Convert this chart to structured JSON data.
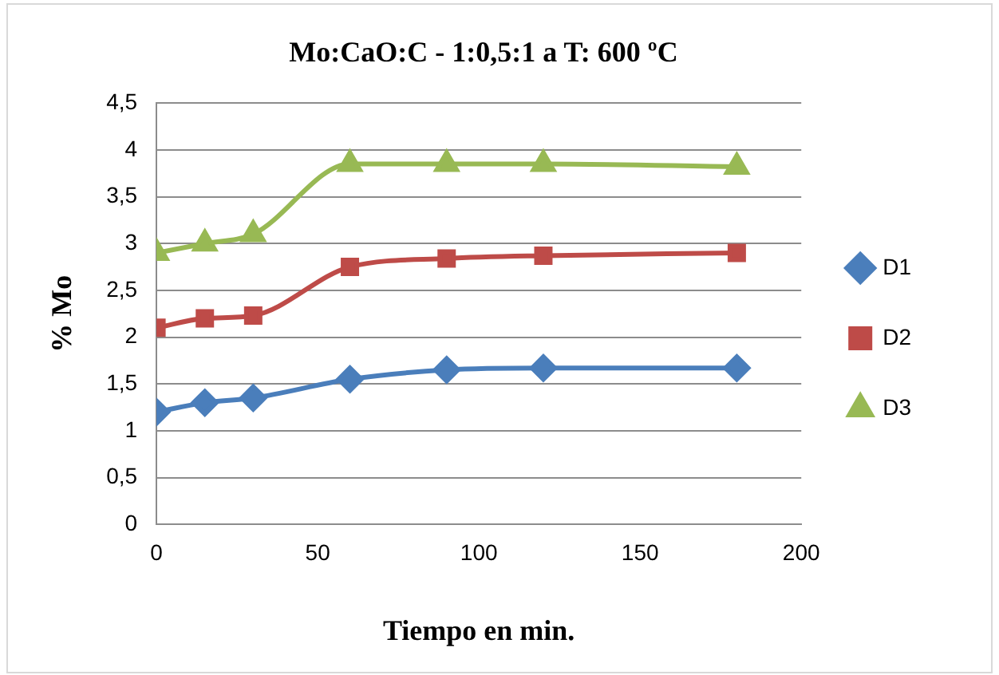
{
  "chart_data": {
    "type": "line",
    "title": "Mo:CaO:C - 1:0,5:1 a T: 600 ºC",
    "xlabel": "Tiempo en min.",
    "ylabel": "% Mo",
    "x": [
      0,
      15,
      30,
      60,
      90,
      120,
      180
    ],
    "series": [
      {
        "name": "D1",
        "color": "#4a7ebb",
        "marker": "diamond",
        "values": [
          1.2,
          1.3,
          1.35,
          1.55,
          1.65,
          1.67,
          1.67
        ]
      },
      {
        "name": "D2",
        "color": "#be4b48",
        "marker": "square",
        "values": [
          2.1,
          2.2,
          2.23,
          2.75,
          2.84,
          2.87,
          2.9
        ]
      },
      {
        "name": "D3",
        "color": "#98b954",
        "marker": "triangle",
        "values": [
          2.9,
          3.0,
          3.1,
          3.85,
          3.85,
          3.85,
          3.82
        ]
      }
    ],
    "xlim": [
      0,
      200
    ],
    "xticks": [
      0,
      50,
      100,
      150,
      200
    ],
    "ylim": [
      0,
      4.5
    ],
    "yticks": [
      0,
      {
        "value": 0.5,
        "label": "0,5"
      },
      1,
      {
        "value": 1.5,
        "label": "1,5"
      },
      2,
      {
        "value": 2.5,
        "label": "2,5"
      },
      3,
      {
        "value": 3.5,
        "label": "3,5"
      },
      4,
      {
        "value": 4.5,
        "label": "4,5"
      }
    ],
    "grid": "y",
    "legend": "right",
    "line_style": "solid"
  }
}
